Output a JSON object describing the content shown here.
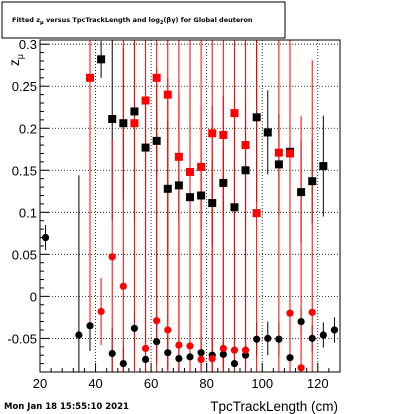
{
  "footer": {
    "timestamp": "Mon Jan 18 15:55:10 2021"
  },
  "chart_data": {
    "type": "scatter",
    "title": "Fitted z_{#mu} versus TpcTrackLength and log_{2}(#beta#gamma) for Global deuteron",
    "xlabel": "TpcTrackLength (cm)",
    "ylabel": "z_{#mu}",
    "xlim": [
      20,
      128
    ],
    "ylim": [
      -0.09,
      0.305
    ],
    "grid": true,
    "x_tick_labels": [
      "20",
      "40",
      "60",
      "80",
      "100",
      "120"
    ],
    "y_tick_labels": [
      "-0.05",
      "0",
      "0.05",
      "0.1",
      "0.15",
      "0.2",
      "0.25",
      "0.3"
    ],
    "series": [
      {
        "marker": "circle",
        "color": "#000000",
        "points": [
          {
            "x": 22,
            "y": 0.07,
            "err": 0.015
          },
          {
            "x": 34,
            "y": -0.046,
            "err": 0.19
          },
          {
            "x": 38,
            "y": -0.035,
            "err": 0.03
          },
          {
            "x": 46,
            "y": -0.068,
            "err": 0.03
          },
          {
            "x": 50,
            "y": -0.08,
            "err": 0.02
          },
          {
            "x": 54,
            "y": -0.038,
            "err": 0.02
          },
          {
            "x": 58,
            "y": -0.075,
            "err": 0.03
          },
          {
            "x": 62,
            "y": -0.054,
            "err": 0.025
          },
          {
            "x": 66,
            "y": -0.067,
            "err": 0.02
          },
          {
            "x": 70,
            "y": -0.074,
            "err": 0.02
          },
          {
            "x": 74,
            "y": -0.072,
            "err": 0.015
          },
          {
            "x": 78,
            "y": -0.067,
            "err": 0.02
          },
          {
            "x": 82,
            "y": -0.07,
            "err": 0.02
          },
          {
            "x": 86,
            "y": -0.069,
            "err": 0.015
          },
          {
            "x": 90,
            "y": -0.08,
            "err": 0.015
          },
          {
            "x": 94,
            "y": -0.07,
            "err": 0.015
          },
          {
            "x": 98,
            "y": -0.051,
            "err": 0.02
          },
          {
            "x": 102,
            "y": -0.05,
            "err": 0.02
          },
          {
            "x": 106,
            "y": -0.051,
            "err": 0.02
          },
          {
            "x": 110,
            "y": -0.073,
            "err": 0.02
          },
          {
            "x": 114,
            "y": -0.03,
            "err": 0.015
          },
          {
            "x": 118,
            "y": -0.05,
            "err": 0.015
          },
          {
            "x": 122,
            "y": -0.046,
            "err": 0.015
          },
          {
            "x": 126,
            "y": -0.04,
            "err": 0.015
          }
        ]
      },
      {
        "marker": "square",
        "color": "#000000",
        "points": [
          {
            "x": 42,
            "y": 0.282,
            "err": 0.022
          },
          {
            "x": 46,
            "y": 0.211,
            "err": 0.12
          },
          {
            "x": 50,
            "y": 0.206,
            "err": 0.09
          },
          {
            "x": 54,
            "y": 0.22,
            "err": 0.13
          },
          {
            "x": 58,
            "y": 0.177,
            "err": 0.05
          },
          {
            "x": 62,
            "y": 0.185,
            "err": 0.04
          },
          {
            "x": 66,
            "y": 0.128,
            "err": 0.08
          },
          {
            "x": 70,
            "y": 0.132,
            "err": 0.04
          },
          {
            "x": 74,
            "y": 0.118,
            "err": 0.05
          },
          {
            "x": 78,
            "y": 0.12,
            "err": 0.04
          },
          {
            "x": 82,
            "y": 0.111,
            "err": 0.05
          },
          {
            "x": 86,
            "y": 0.135,
            "err": 0.04
          },
          {
            "x": 90,
            "y": 0.106,
            "err": 0.06
          },
          {
            "x": 94,
            "y": 0.15,
            "err": 0.06
          },
          {
            "x": 98,
            "y": 0.213,
            "err": 0.1
          },
          {
            "x": 102,
            "y": 0.195,
            "err": 0.05
          },
          {
            "x": 106,
            "y": 0.157,
            "err": 0.06
          },
          {
            "x": 110,
            "y": 0.172,
            "err": 0.06
          },
          {
            "x": 114,
            "y": 0.124,
            "err": 0.06
          },
          {
            "x": 118,
            "y": 0.137,
            "err": 0.05
          },
          {
            "x": 122,
            "y": 0.155,
            "err": 0.06
          }
        ]
      },
      {
        "marker": "circle",
        "color": "#ff0000",
        "points": [
          {
            "x": 42,
            "y": -0.018,
            "err": 0.04
          },
          {
            "x": 46,
            "y": 0.047,
            "err": 0.14
          },
          {
            "x": 50,
            "y": 0.012,
            "err": 0.3
          },
          {
            "x": 58,
            "y": -0.062,
            "err": 0.3
          },
          {
            "x": 62,
            "y": -0.029,
            "err": 0.3
          },
          {
            "x": 66,
            "y": -0.04,
            "err": 0.3
          },
          {
            "x": 70,
            "y": -0.058,
            "err": 0.3
          },
          {
            "x": 74,
            "y": -0.059,
            "err": 0.3
          },
          {
            "x": 78,
            "y": -0.075,
            "err": 0.3
          },
          {
            "x": 82,
            "y": -0.074,
            "err": 0.3
          },
          {
            "x": 86,
            "y": -0.062,
            "err": 0.3
          },
          {
            "x": 90,
            "y": -0.064,
            "err": 0.3
          },
          {
            "x": 94,
            "y": -0.064,
            "err": 0.3
          },
          {
            "x": 110,
            "y": -0.02,
            "err": 0.3
          },
          {
            "x": 114,
            "y": -0.085,
            "err": 0.3
          },
          {
            "x": 118,
            "y": -0.019,
            "err": 0.3
          }
        ]
      },
      {
        "marker": "square",
        "color": "#ff0000",
        "points": [
          {
            "x": 38,
            "y": 0.26,
            "err": 0.3
          },
          {
            "x": 54,
            "y": 0.206,
            "err": 0.3
          },
          {
            "x": 58,
            "y": 0.233,
            "err": 0.3
          },
          {
            "x": 62,
            "y": 0.26,
            "err": 0.3
          },
          {
            "x": 66,
            "y": 0.24,
            "err": 0.3
          },
          {
            "x": 70,
            "y": 0.166,
            "err": 0.3
          },
          {
            "x": 74,
            "y": 0.148,
            "err": 0.3
          },
          {
            "x": 78,
            "y": 0.154,
            "err": 0.3
          },
          {
            "x": 82,
            "y": 0.194,
            "err": 0.3
          },
          {
            "x": 86,
            "y": 0.192,
            "err": 0.3
          },
          {
            "x": 90,
            "y": 0.218,
            "err": 0.3
          },
          {
            "x": 94,
            "y": 0.18,
            "err": 0.3
          },
          {
            "x": 98,
            "y": 0.099,
            "err": 0.3
          },
          {
            "x": 106,
            "y": 0.171,
            "err": 0.3
          },
          {
            "x": 110,
            "y": 0.17,
            "err": 0.3
          }
        ]
      }
    ]
  }
}
